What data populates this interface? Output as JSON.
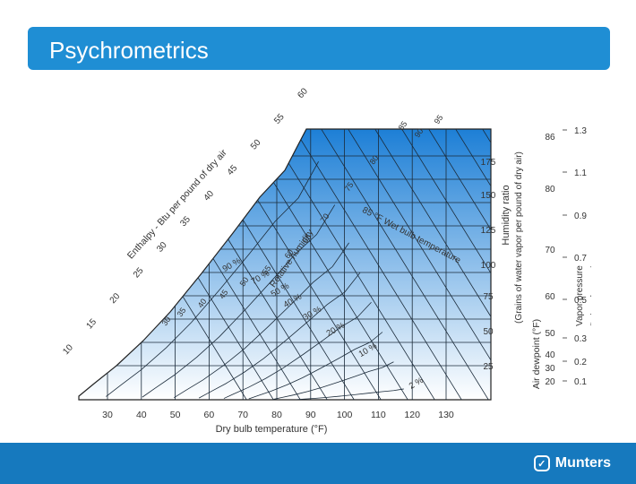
{
  "slide": {
    "title": "Psychrometrics",
    "accent_color": "#1f8ed4",
    "footer_color": "#1679be"
  },
  "logo": {
    "text": "Munters",
    "icon": "munters-logo-icon"
  },
  "chart": {
    "x_axis_label": "Dry bulb temperature (°F)",
    "x_ticks": [
      "30",
      "40",
      "50",
      "60",
      "70",
      "80",
      "90",
      "100",
      "110",
      "120",
      "130"
    ],
    "enthalpy_label": "Enthalpy - Btu per pound of dry air",
    "enthalpy_ticks": [
      "10",
      "15",
      "20",
      "25",
      "30",
      "35",
      "40",
      "45",
      "50",
      "55",
      "60"
    ],
    "humidity_ratio_label": "Humidity ratio",
    "humidity_ratio_sub": "(Grains of water vapor per pound of dry air)",
    "humidity_ticks": [
      "25",
      "50",
      "75",
      "100",
      "125",
      "150",
      "175"
    ],
    "dewpoint_label": "Air dewpoint (°F)",
    "dewpoint_ticks": [
      "20",
      "30",
      "40",
      "50",
      "60",
      "70",
      "80",
      "86"
    ],
    "vapor_pressure_label": "Vapor pressure",
    "vapor_pressure_sub": "(inches of mercury)",
    "vapor_ticks": [
      "0.1",
      "0.2",
      "0.3",
      "0.5",
      "0.7",
      "0.9",
      "1.1",
      "1.3"
    ],
    "wet_bulb_label": "85 °F Wet bulb temperature",
    "wet_bulb_ticks": [
      "30",
      "35",
      "40",
      "45",
      "50",
      "55",
      "60",
      "65",
      "70",
      "75",
      "80",
      "85",
      "90",
      "95"
    ],
    "rh_label": "Relative humidity",
    "rh_ticks": [
      "90 %",
      "70 %",
      "50 %",
      "40 %",
      "30 %",
      "20 %",
      "10 %",
      "2 %"
    ],
    "fill_top_color": "#1d7fd6",
    "fill_bottom_color": "#ffffff"
  }
}
